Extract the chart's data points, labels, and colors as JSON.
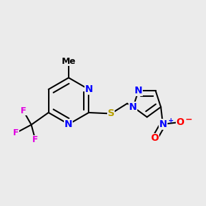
{
  "background_color": "#ebebeb",
  "bond_color": "#000000",
  "bond_width": 1.5,
  "figsize": [
    3.0,
    3.0
  ],
  "dpi": 100,
  "atom_colors": {
    "N": "#0000ff",
    "S": "#b8a000",
    "F": "#e000e0",
    "O": "#ff0000",
    "C": "#000000"
  },
  "font_size": 10
}
